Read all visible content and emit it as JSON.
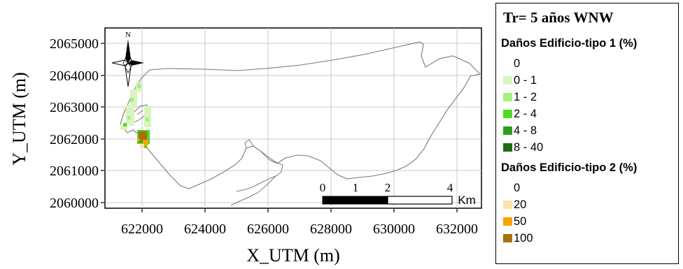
{
  "map": {
    "x_axis_label": "X_UTM (m)",
    "y_axis_label": "Y_UTM (m)",
    "x_ticks": [
      "622000",
      "624000",
      "626000",
      "628000",
      "630000",
      "632000"
    ],
    "y_ticks": [
      "2065000",
      "2064000",
      "2063000",
      "2062000",
      "2061000",
      "2060000"
    ],
    "north_label": "N",
    "scale_bar": {
      "labels": [
        "0",
        "1",
        "2",
        "4"
      ],
      "unit": "Km"
    },
    "grid": true
  },
  "legend": {
    "title": "Tr= 5 años WNW",
    "group1": {
      "heading": "Daños Edificio-tipo 1 (%)",
      "items": [
        {
          "label": "0",
          "color": ""
        },
        {
          "label": "0 - 1",
          "color": "#d8f5c0"
        },
        {
          "label": "1 - 2",
          "color": "#a6ef80"
        },
        {
          "label": "2 - 4",
          "color": "#4cdb22"
        },
        {
          "label": "4 - 8",
          "color": "#2f9e1c"
        },
        {
          "label": "8 - 40",
          "color": "#1f6a14"
        }
      ]
    },
    "group2": {
      "heading": "Daños Edificio-tipo 2 (%)",
      "items": [
        {
          "label": "0",
          "color": ""
        },
        {
          "label": "20",
          "color": "#fde3aa"
        },
        {
          "label": "50",
          "color": "#f5a500"
        },
        {
          "label": "100",
          "color": "#a8700e"
        }
      ]
    }
  }
}
